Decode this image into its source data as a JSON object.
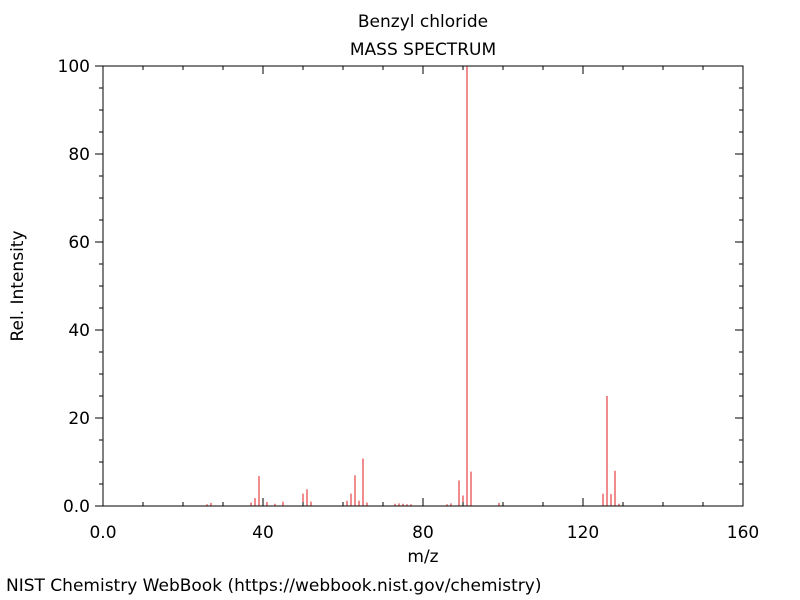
{
  "footer": "NIST Chemistry WebBook (https://webbook.nist.gov/chemistry)",
  "chart_data": {
    "type": "bar",
    "title": "Benzyl chloride",
    "subtitle": "MASS SPECTRUM",
    "xlabel": "m/z",
    "ylabel": "Rel. Intensity",
    "xlim": [
      0,
      160
    ],
    "ylim": [
      0,
      100
    ],
    "x_ticks": [
      "0.0",
      "40",
      "80",
      "120",
      "160"
    ],
    "y_ticks": [
      "0.0",
      "20",
      "40",
      "60",
      "80",
      "100"
    ],
    "bar_color": "#e31a1c",
    "grid": false,
    "legend": "none",
    "peaks": [
      {
        "mz": 26,
        "intensity": 0.4
      },
      {
        "mz": 27,
        "intensity": 0.7
      },
      {
        "mz": 37,
        "intensity": 0.8
      },
      {
        "mz": 38,
        "intensity": 1.8
      },
      {
        "mz": 39,
        "intensity": 6.8
      },
      {
        "mz": 40,
        "intensity": 0.6
      },
      {
        "mz": 41,
        "intensity": 0.9
      },
      {
        "mz": 43,
        "intensity": 0.5
      },
      {
        "mz": 45,
        "intensity": 1.0
      },
      {
        "mz": 50,
        "intensity": 2.8
      },
      {
        "mz": 51,
        "intensity": 3.8
      },
      {
        "mz": 52,
        "intensity": 1.0
      },
      {
        "mz": 61,
        "intensity": 1.2
      },
      {
        "mz": 62,
        "intensity": 2.8
      },
      {
        "mz": 63,
        "intensity": 7.0
      },
      {
        "mz": 64,
        "intensity": 1.2
      },
      {
        "mz": 65,
        "intensity": 10.8
      },
      {
        "mz": 66,
        "intensity": 0.8
      },
      {
        "mz": 73,
        "intensity": 0.5
      },
      {
        "mz": 74,
        "intensity": 0.6
      },
      {
        "mz": 75,
        "intensity": 0.5
      },
      {
        "mz": 76,
        "intensity": 0.4
      },
      {
        "mz": 77,
        "intensity": 0.4
      },
      {
        "mz": 86,
        "intensity": 0.4
      },
      {
        "mz": 87,
        "intensity": 0.6
      },
      {
        "mz": 89,
        "intensity": 5.8
      },
      {
        "mz": 90,
        "intensity": 2.4
      },
      {
        "mz": 91,
        "intensity": 100
      },
      {
        "mz": 92,
        "intensity": 7.8
      },
      {
        "mz": 99,
        "intensity": 0.7
      },
      {
        "mz": 100,
        "intensity": 0.3
      },
      {
        "mz": 125,
        "intensity": 2.8
      },
      {
        "mz": 126,
        "intensity": 25.0
      },
      {
        "mz": 127,
        "intensity": 2.7
      },
      {
        "mz": 128,
        "intensity": 8.0
      },
      {
        "mz": 129,
        "intensity": 0.5
      }
    ]
  }
}
